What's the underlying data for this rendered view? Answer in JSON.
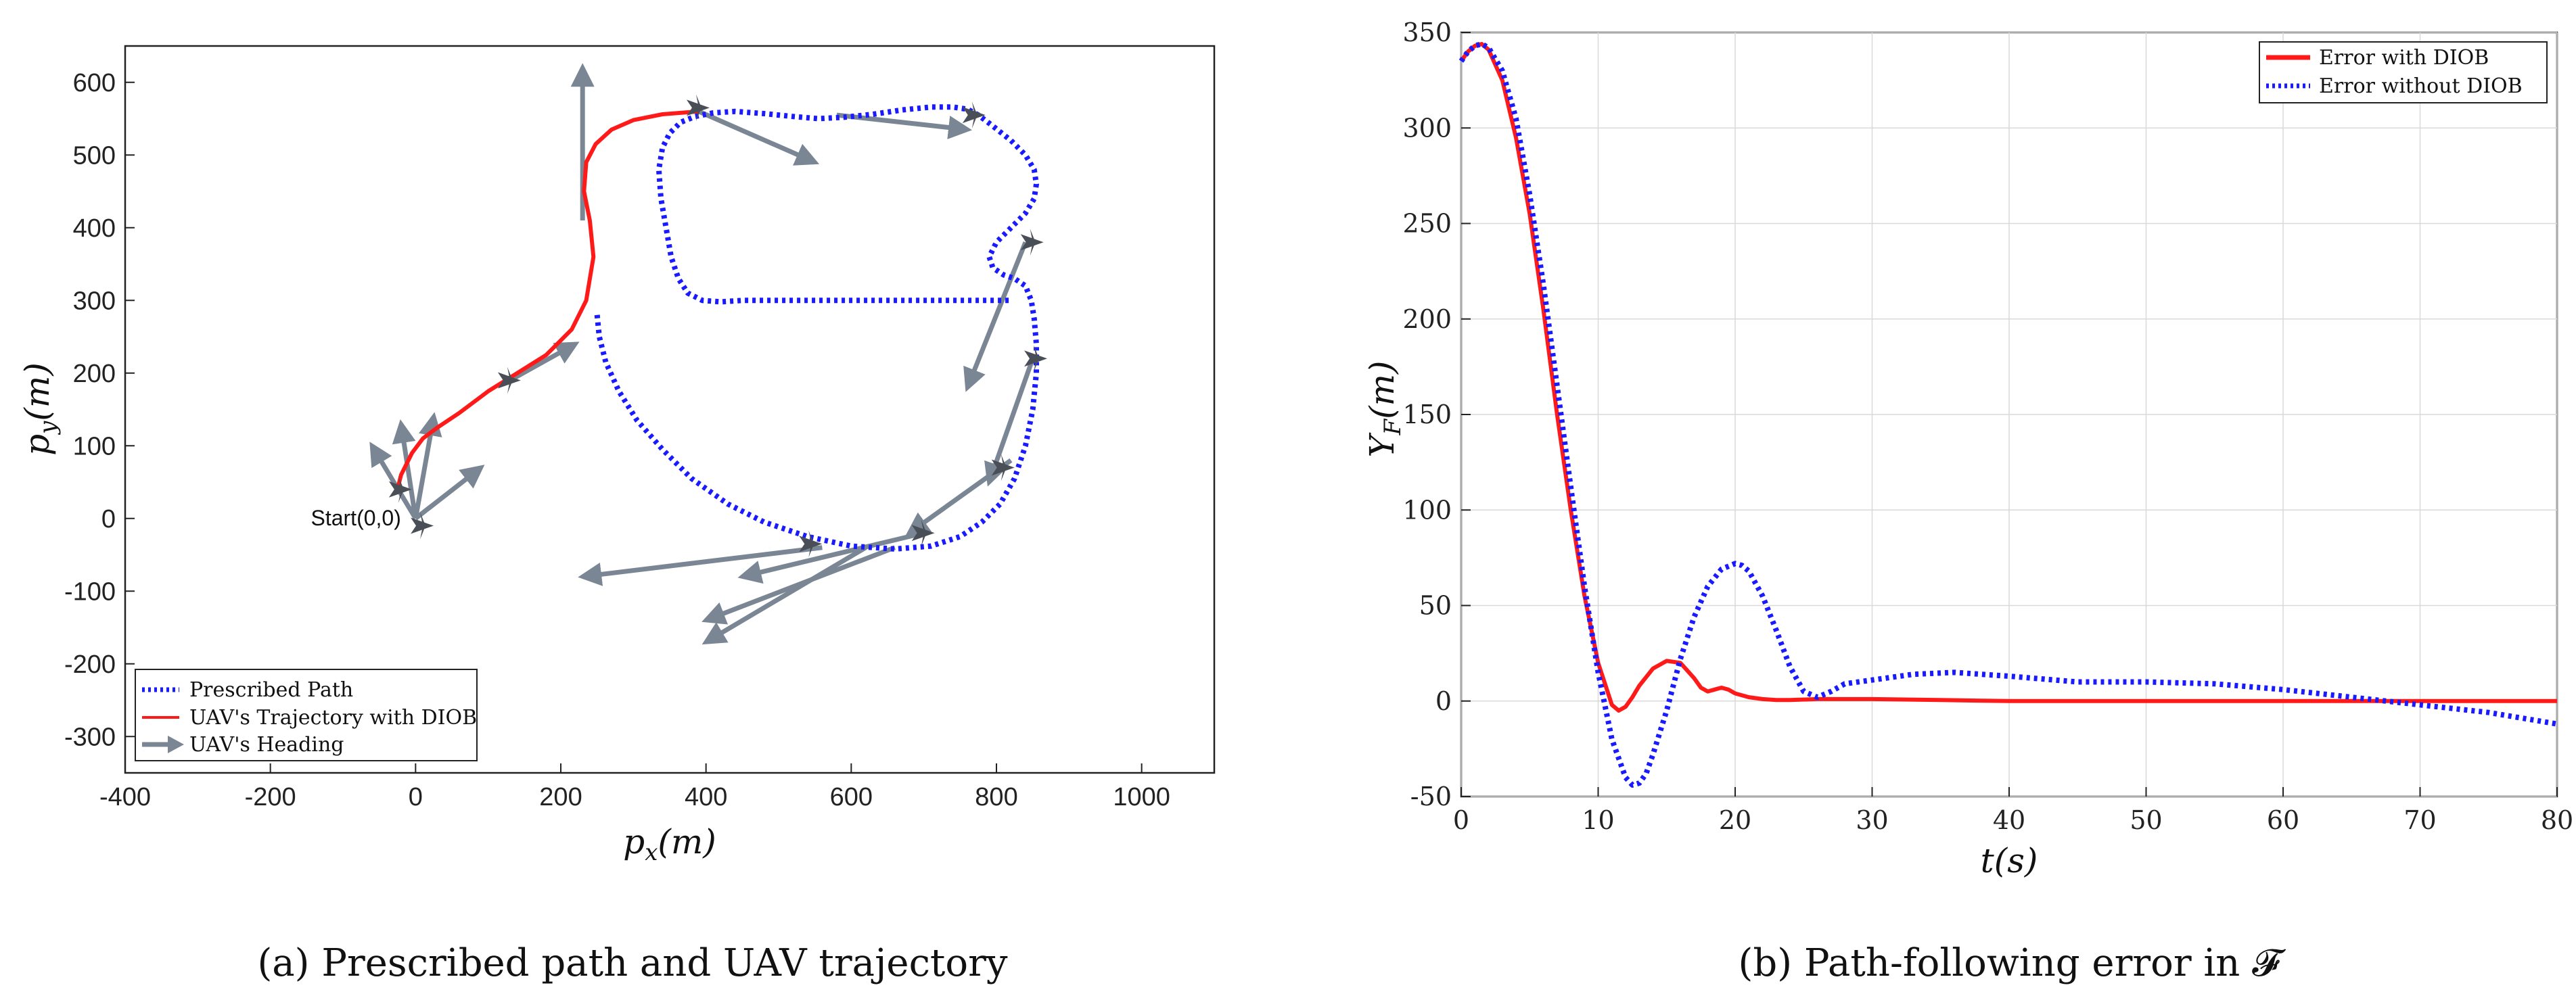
{
  "chart_data": [
    {
      "type": "line",
      "panel": "a",
      "caption": "(a)  Prescribed path and UAV trajectory",
      "xlabel": "p_x(m)",
      "ylabel": "p_y(m)",
      "xlim": [
        -400,
        1100
      ],
      "ylim": [
        -350,
        650
      ],
      "xticks": [
        -400,
        -200,
        0,
        200,
        400,
        600,
        800,
        1000
      ],
      "yticks": [
        -300,
        -200,
        -100,
        0,
        100,
        200,
        300,
        400,
        500,
        600
      ],
      "xtick_labels": [
        "-400",
        "-200",
        "0",
        "200",
        "400",
        "600",
        "800",
        "1000"
      ],
      "ytick_labels": [
        "-300",
        "-200",
        "-100",
        "0",
        "100",
        "200",
        "300",
        "400",
        "500",
        "600"
      ],
      "grid": false,
      "legend_position": "bottom-left",
      "annotation": {
        "text": "Start(0,0)",
        "x": -150,
        "y": 0
      },
      "series": [
        {
          "name": "Prescribed Path",
          "color": "#1a1aff",
          "style": "dotted",
          "x": [
            250,
            253,
            262,
            280,
            305,
            340,
            380,
            430,
            480,
            540,
            600,
            660,
            710,
            750,
            780,
            805,
            825,
            840,
            850,
            855,
            855,
            852,
            848,
            840,
            825,
            810,
            795,
            790,
            800,
            820,
            840,
            852,
            855,
            852,
            840,
            820,
            795,
            775,
            760,
            740,
            710,
            670,
            630,
            590,
            555,
            520,
            480,
            440,
            410,
            385,
            365,
            350,
            340,
            335,
            338,
            345,
            352,
            362,
            375,
            395,
            420,
            450,
            490,
            540,
            590,
            640,
            690,
            740,
            780,
            810,
            820
          ],
          "y": [
            280,
            250,
            215,
            175,
            135,
            95,
            55,
            20,
            -5,
            -25,
            -38,
            -42,
            -38,
            -25,
            -5,
            20,
            55,
            100,
            150,
            200,
            240,
            275,
            300,
            320,
            330,
            335,
            345,
            360,
            380,
            400,
            420,
            440,
            460,
            480,
            500,
            520,
            540,
            555,
            563,
            566,
            566,
            562,
            556,
            552,
            550,
            553,
            557,
            560,
            558,
            553,
            545,
            530,
            510,
            480,
            440,
            400,
            360,
            330,
            310,
            300,
            298,
            300,
            300,
            300,
            300,
            300,
            300,
            300,
            300,
            300,
            300
          ]
        },
        {
          "name": "UAV's Trajectory with DIOB",
          "color": "#ff1a1a",
          "style": "solid",
          "x": [
            -25,
            -20,
            -5,
            10,
            30,
            60,
            100,
            140,
            180,
            215,
            235,
            245,
            240,
            232,
            235,
            248,
            270,
            300,
            340,
            390
          ],
          "y": [
            40,
            60,
            90,
            110,
            125,
            145,
            175,
            200,
            225,
            260,
            300,
            360,
            410,
            450,
            490,
            515,
            535,
            548,
            556,
            560
          ]
        }
      ],
      "headings": [
        {
          "x": 0,
          "y": 0,
          "dx": -20,
          "dy": 130
        },
        {
          "x": 0,
          "y": 0,
          "dx": -60,
          "dy": 100
        },
        {
          "x": 0,
          "y": 0,
          "dx": 25,
          "dy": 140
        },
        {
          "x": 0,
          "y": 0,
          "dx": 90,
          "dy": 70
        },
        {
          "x": 130,
          "y": 190,
          "dx": 90,
          "dy": 50
        },
        {
          "x": 230,
          "y": 410,
          "dx": 0,
          "dy": 210
        },
        {
          "x": 390,
          "y": 560,
          "dx": 160,
          "dy": -70
        },
        {
          "x": 580,
          "y": 555,
          "dx": 180,
          "dy": -20
        },
        {
          "x": 840,
          "y": 380,
          "dx": -80,
          "dy": -200
        },
        {
          "x": 850,
          "y": 220,
          "dx": -60,
          "dy": -170
        },
        {
          "x": 820,
          "y": 80,
          "dx": -140,
          "dy": -100
        },
        {
          "x": 700,
          "y": -20,
          "dx": -250,
          "dy": -60
        },
        {
          "x": 660,
          "y": -40,
          "dx": -260,
          "dy": -100
        },
        {
          "x": 620,
          "y": -40,
          "dx": -220,
          "dy": -130
        },
        {
          "x": 560,
          "y": -40,
          "dx": -330,
          "dy": -40
        }
      ],
      "uav_markers": [
        {
          "x": 10,
          "y": -10
        },
        {
          "x": -20,
          "y": 40
        },
        {
          "x": 130,
          "y": 190
        },
        {
          "x": 390,
          "y": 565
        },
        {
          "x": 770,
          "y": 555
        },
        {
          "x": 850,
          "y": 380
        },
        {
          "x": 855,
          "y": 220
        },
        {
          "x": 810,
          "y": 70
        },
        {
          "x": 700,
          "y": -20
        },
        {
          "x": 545,
          "y": -35
        }
      ]
    },
    {
      "type": "line",
      "panel": "b",
      "caption": "(b)  Path-following error in 𝓕",
      "xlabel": "t(s)",
      "ylabel": "Y_F(m)",
      "xlim": [
        0,
        80
      ],
      "ylim": [
        -50,
        350
      ],
      "xticks": [
        0,
        10,
        20,
        30,
        40,
        50,
        60,
        70,
        80
      ],
      "yticks": [
        -50,
        0,
        50,
        100,
        150,
        200,
        250,
        300,
        350
      ],
      "xtick_labels": [
        "0",
        "10",
        "20",
        "30",
        "40",
        "50",
        "60",
        "70",
        "80"
      ],
      "ytick_labels": [
        "-50",
        "0",
        "50",
        "100",
        "150",
        "200",
        "250",
        "300",
        "350"
      ],
      "grid": true,
      "legend_position": "top-right",
      "series": [
        {
          "name": "Error with DIOB",
          "color": "#ff1a1a",
          "style": "solid",
          "x": [
            0,
            0.5,
            1,
            1.5,
            2,
            3,
            4,
            5,
            6,
            7,
            8,
            9,
            10,
            11,
            11.5,
            12,
            12.5,
            13,
            14,
            15,
            16,
            17,
            17.5,
            18,
            18.5,
            19,
            19.5,
            20,
            21,
            22,
            23,
            24,
            26,
            30,
            35,
            40,
            50,
            60,
            70,
            80
          ],
          "y": [
            335,
            340,
            343,
            344,
            341,
            325,
            295,
            255,
            205,
            150,
            100,
            55,
            20,
            -2,
            -5,
            -3,
            2,
            8,
            17,
            21,
            20,
            12,
            7,
            5,
            6,
            7,
            6,
            4,
            2,
            1,
            0.5,
            0.5,
            1,
            1,
            0.5,
            0,
            0,
            0,
            0,
            0
          ]
        },
        {
          "name": "Error without DIOB",
          "color": "#1a1aff",
          "style": "dotted",
          "x": [
            0,
            0.5,
            1,
            1.5,
            2,
            3,
            4,
            5,
            6,
            7,
            8,
            9,
            10,
            11,
            12,
            12.5,
            13,
            13.5,
            14,
            15,
            16,
            17,
            18,
            19,
            20,
            20.5,
            21,
            22,
            23,
            24,
            25,
            26,
            27,
            28,
            30,
            33,
            36,
            40,
            45,
            50,
            55,
            60,
            65,
            70,
            75,
            80
          ],
          "y": [
            335,
            340,
            343,
            344,
            342,
            330,
            305,
            265,
            218,
            165,
            112,
            60,
            15,
            -20,
            -40,
            -44,
            -43,
            -38,
            -28,
            -5,
            22,
            44,
            60,
            69,
            72,
            71,
            68,
            55,
            37,
            18,
            5,
            2,
            5,
            9,
            11,
            14,
            15,
            13,
            10,
            10,
            9,
            6,
            2,
            -2,
            -6,
            -12
          ]
        }
      ]
    }
  ]
}
